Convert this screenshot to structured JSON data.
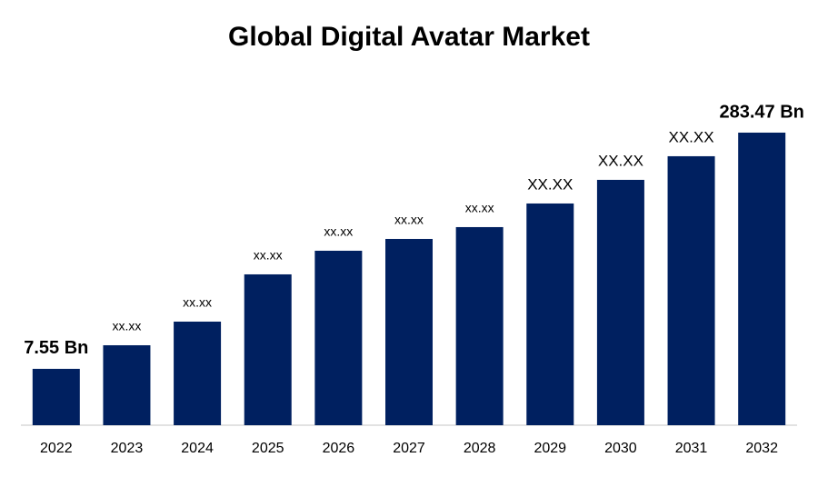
{
  "chart_data": {
    "type": "bar",
    "title": "Global Digital Avatar Market",
    "categories": [
      "2022",
      "2023",
      "2024",
      "2025",
      "2026",
      "2027",
      "2028",
      "2029",
      "2030",
      "2031",
      "2032"
    ],
    "values": [
      7.55,
      35.1,
      62.7,
      117.9,
      145.5,
      159.3,
      173.1,
      200.7,
      228.3,
      255.9,
      283.47
    ],
    "value_labels": [
      "7.55 Bn",
      "xx.xx",
      "xx.xx",
      "xx.xx",
      "xx.xx",
      "xx.xx",
      "xx.xx",
      "XX.XX",
      "XX.XX",
      "XX.XX",
      "283.47 Bn"
    ],
    "color": "#002060",
    "ylim": [
      -58.3,
      300
    ]
  }
}
